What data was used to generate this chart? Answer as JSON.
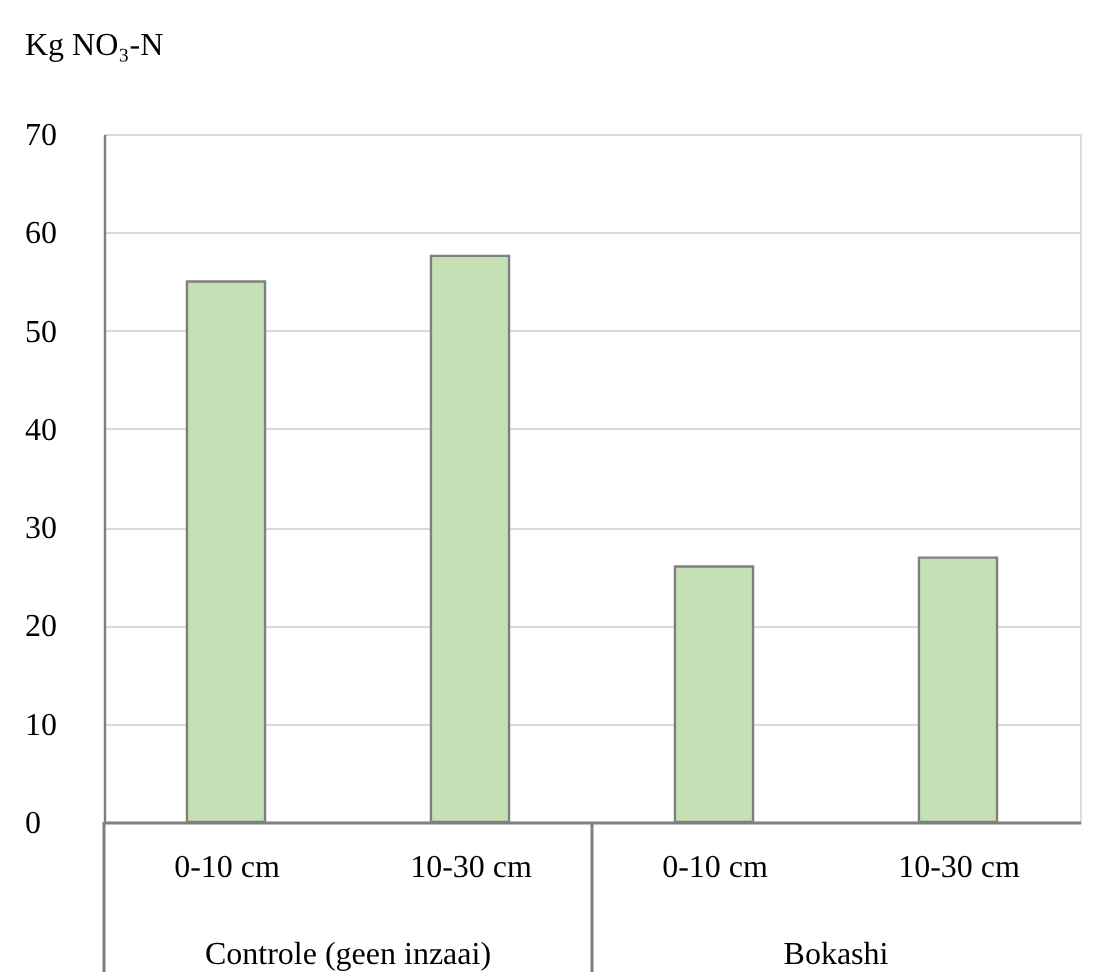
{
  "chart_data": {
    "type": "bar",
    "ylabel": "Kg NO₃-N",
    "categories": [
      "0-10 cm",
      "10-30 cm",
      "0-10 cm",
      "10-30 cm"
    ],
    "values": [
      55,
      57.6,
      26,
      26.9
    ],
    "color": "#c5e0b4",
    "ylim": [
      0,
      70
    ],
    "yticks": [
      0,
      10,
      20,
      30,
      40,
      50,
      60,
      70
    ],
    "grid": "y",
    "annotations": [
      "Controle (geen inzaai)",
      "Bokashi"
    ]
  }
}
